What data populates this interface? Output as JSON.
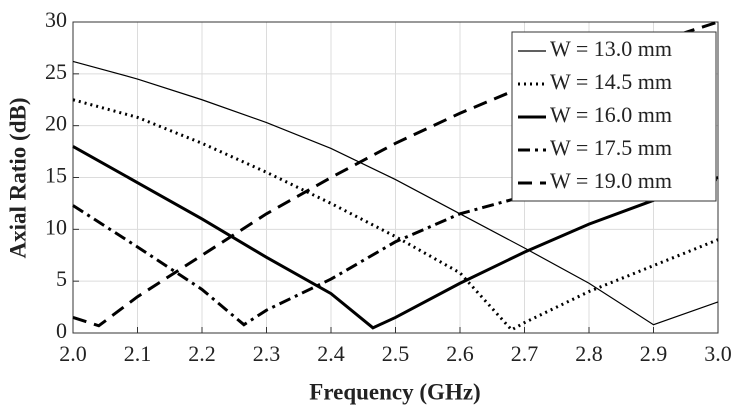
{
  "chart_data": {
    "type": "line",
    "xlabel": "Frequency (GHz)",
    "ylabel": "Axial Ratio (dB)",
    "xlim": [
      2.0,
      3.0
    ],
    "xticks": [
      {
        "value": 2.0,
        "label": "2.0"
      },
      2.1,
      2.2,
      2.3,
      2.4,
      2.5,
      2.6,
      2.7,
      2.8,
      2.9,
      {
        "value": 3.0,
        "label": "3.0"
      }
    ],
    "ylim": [
      0,
      30
    ],
    "yticks": [
      0,
      5,
      10,
      15,
      20,
      25,
      30
    ],
    "grid": true,
    "legend": "upper right",
    "series": [
      {
        "name": "W = 13.0 mm",
        "color": "#000000",
        "style": "solid",
        "width": 1.2,
        "x": [
          2.0,
          2.1,
          2.2,
          2.3,
          2.4,
          2.5,
          2.6,
          2.7,
          2.8,
          2.9,
          3.0
        ],
        "values": [
          26.2,
          24.5,
          22.5,
          20.3,
          17.8,
          14.8,
          11.5,
          8.2,
          4.8,
          0.8,
          3.0
        ]
      },
      {
        "name": "W = 14.5 mm",
        "color": "#000000",
        "style": "dotted",
        "width": 3,
        "x": [
          2.0,
          2.1,
          2.2,
          2.3,
          2.4,
          2.5,
          2.6,
          2.68,
          2.7,
          2.8,
          2.9,
          3.0
        ],
        "values": [
          22.5,
          20.8,
          18.3,
          15.5,
          12.5,
          9.3,
          5.8,
          0.3,
          1.0,
          4.0,
          6.5,
          9.0
        ]
      },
      {
        "name": "W = 16.0 mm",
        "color": "#000000",
        "style": "solid",
        "width": 3,
        "x": [
          2.0,
          2.1,
          2.2,
          2.3,
          2.4,
          2.465,
          2.5,
          2.6,
          2.7,
          2.8,
          2.9,
          3.0
        ],
        "values": [
          18.0,
          14.5,
          11.0,
          7.3,
          3.8,
          0.5,
          1.5,
          4.8,
          7.8,
          10.5,
          12.8,
          15.0
        ]
      },
      {
        "name": "W = 17.5 mm",
        "color": "#000000",
        "style": "dashdot",
        "width": 3,
        "x": [
          2.0,
          2.1,
          2.2,
          2.265,
          2.3,
          2.4,
          2.5,
          2.6,
          2.7,
          2.8,
          2.9,
          3.0
        ],
        "values": [
          12.3,
          8.3,
          4.2,
          0.8,
          2.2,
          5.2,
          8.8,
          11.5,
          13.2,
          14.0,
          14.5,
          14.8
        ]
      },
      {
        "name": "W = 19.0 mm",
        "color": "#000000",
        "style": "dashed",
        "width": 3,
        "x": [
          2.0,
          2.04,
          2.1,
          2.2,
          2.3,
          2.4,
          2.5,
          2.6,
          2.7,
          2.8,
          2.9,
          3.0
        ],
        "values": [
          1.5,
          0.7,
          3.5,
          7.5,
          11.5,
          15.0,
          18.3,
          21.2,
          23.8,
          26.0,
          28.0,
          30.0
        ]
      }
    ]
  }
}
